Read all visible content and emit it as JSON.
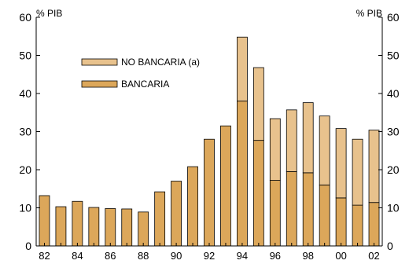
{
  "chart_data": {
    "type": "bar",
    "stacked": true,
    "categories": [
      "82",
      "83",
      "84",
      "85",
      "86",
      "87",
      "88",
      "89",
      "90",
      "91",
      "92",
      "93",
      "94",
      "95",
      "96",
      "97",
      "98",
      "99",
      "00",
      "01",
      "02"
    ],
    "x_tick_labels": [
      "82",
      "84",
      "86",
      "88",
      "90",
      "92",
      "94",
      "96",
      "98",
      "00",
      "02"
    ],
    "y_ticks": [
      0,
      10,
      20,
      30,
      40,
      50,
      60
    ],
    "ylim": [
      0,
      60
    ],
    "unit_left": "% PIB",
    "unit_right": "% PIB",
    "series": [
      {
        "name": "BANCARIA",
        "color": "#dca75a",
        "values": [
          13.2,
          10.3,
          11.7,
          10.1,
          9.8,
          9.7,
          8.9,
          14.2,
          17.0,
          20.8,
          28.0,
          31.5,
          38.0,
          27.7,
          17.2,
          19.5,
          19.2,
          16.0,
          12.6,
          10.7,
          11.4
        ]
      },
      {
        "name": "NO BANCARIA (a)",
        "color": "#e8c28d",
        "values": [
          0,
          0,
          0,
          0,
          0,
          0,
          0,
          0,
          0,
          0,
          0,
          0,
          16.8,
          19.1,
          16.2,
          16.2,
          18.4,
          18.1,
          18.2,
          17.3,
          19.0
        ]
      }
    ],
    "legend": {
      "placement": "upper-left",
      "entries": [
        "NO BANCARIA (a)",
        "BANCARIA"
      ]
    },
    "grid": false
  }
}
